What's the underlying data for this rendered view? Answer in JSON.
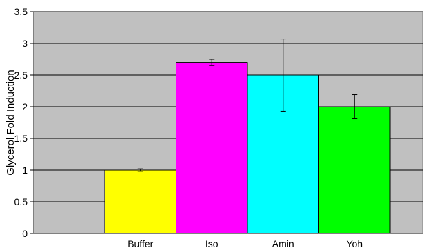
{
  "chart_data": {
    "type": "bar",
    "title": "",
    "xlabel": "",
    "ylabel": "Glycerol Fold Induction",
    "ylim": [
      0,
      3.5
    ],
    "y_ticks": [
      "0",
      "0.5",
      "1",
      "1.5",
      "2",
      "2.5",
      "3",
      "3.5"
    ],
    "grid": true,
    "categories": [
      "Buffer",
      "Iso",
      "Amin",
      "Yoh"
    ],
    "values": [
      1.0,
      2.7,
      2.5,
      2.0
    ],
    "errors": [
      0.02,
      0.05,
      0.57,
      0.19
    ],
    "colors": [
      "#ffff00",
      "#ff00ff",
      "#00ffff",
      "#00ff00"
    ],
    "plot_background": "#c0c0c0"
  }
}
